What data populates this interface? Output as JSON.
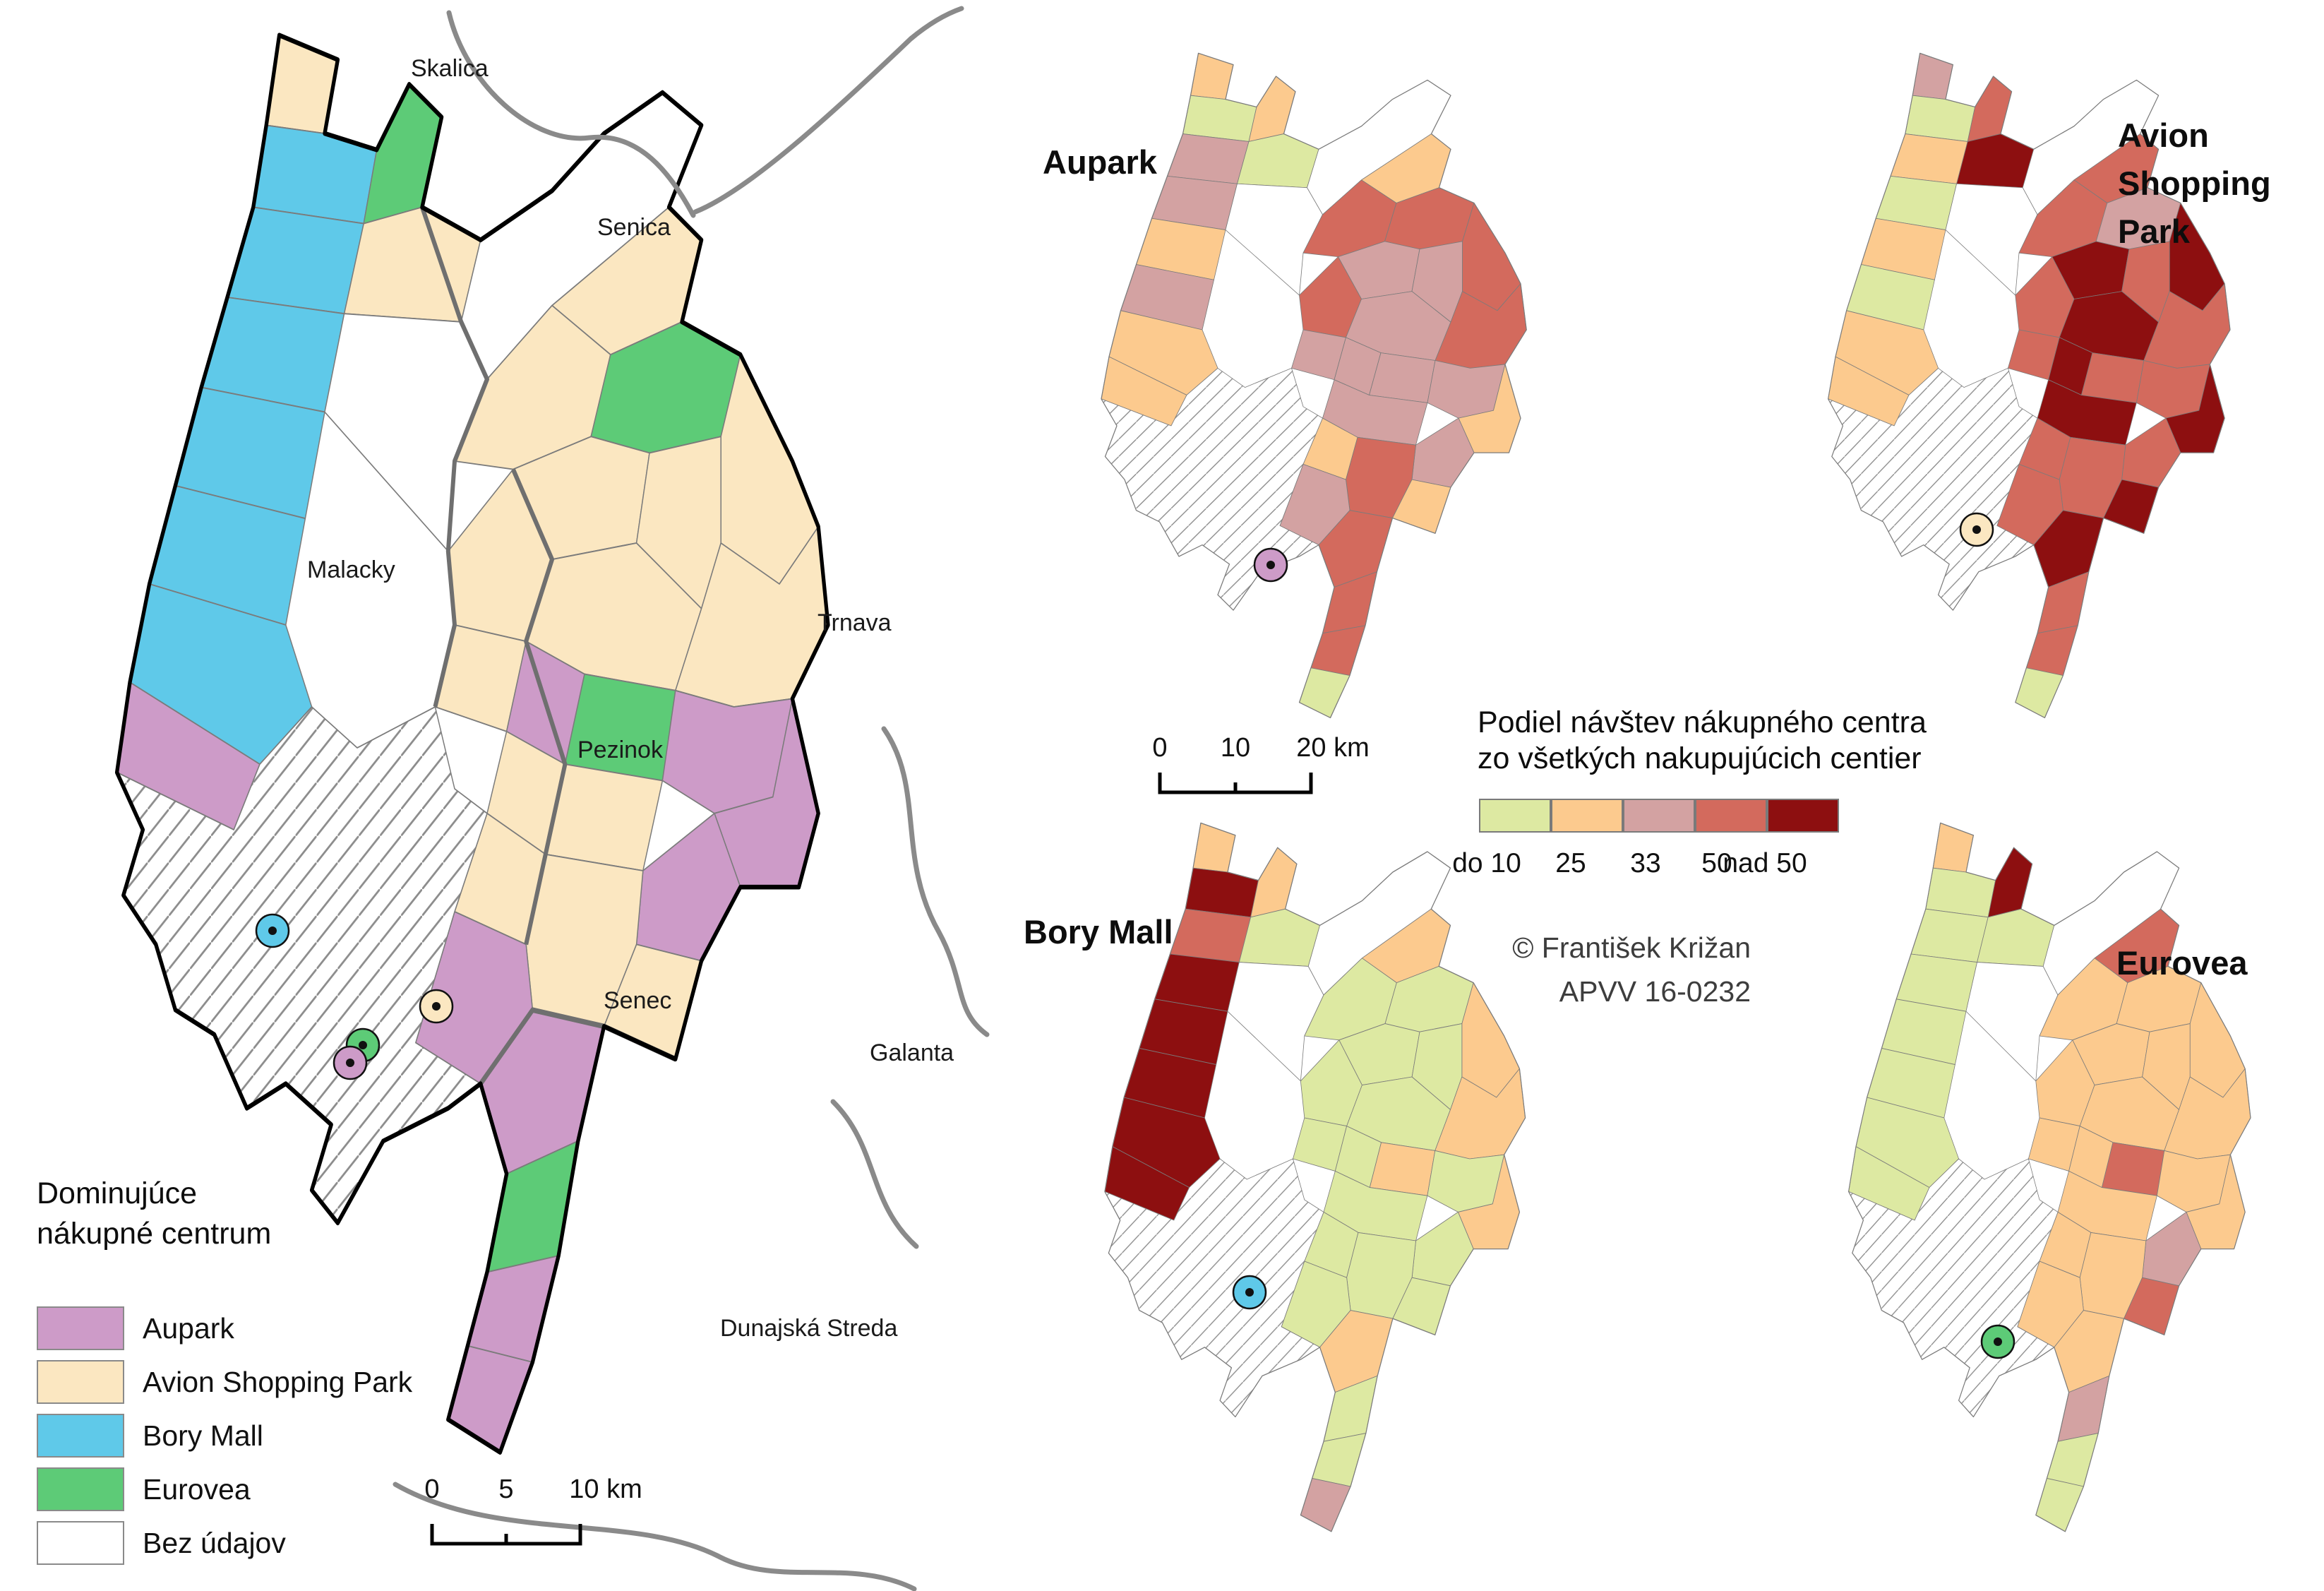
{
  "palette": {
    "c1": "#dde9a2",
    "c2": "#fcca8e",
    "c3": "#d3a2a2",
    "c4": "#d36a5d",
    "c5": "#8d0f10",
    "aupark": "#cd9bc8",
    "avion": "#fbe7c1",
    "bory": "#5fc9e9",
    "eurovea": "#5dcb77",
    "nodata": "#ffffff",
    "hatch_line": "#8c8c8c",
    "border": "#7b7b7b",
    "outline": "#000000"
  },
  "main_map": {
    "legend": {
      "title_line1": "Dominujúce",
      "title_line2": "nákupné centrum",
      "items": [
        {
          "label": "Aupark",
          "color_key": "aupark"
        },
        {
          "label": "Avion Shopping Park",
          "color_key": "avion"
        },
        {
          "label": "Bory Mall",
          "color_key": "bory"
        },
        {
          "label": "Eurovea",
          "color_key": "eurovea"
        },
        {
          "label": "Bez údajov",
          "color_key": "nodata"
        }
      ]
    },
    "scalebar": {
      "start": "0",
      "mid": "5",
      "end": "10 km"
    },
    "city_labels": [
      "Skalica",
      "Senica",
      "Malacky",
      "Trnava",
      "Pezinok",
      "Senec",
      "Galanta",
      "Dunajská Streda"
    ],
    "markers": [
      {
        "name": "bory-mall-location",
        "color_key": "bory"
      },
      {
        "name": "avion-location",
        "color_key": "avion"
      },
      {
        "name": "eurovea-location",
        "color_key": "eurovea"
      },
      {
        "name": "aupark-location",
        "color_key": "aupark"
      }
    ],
    "cells": {
      "Z1": "A",
      "Z2": "B",
      "Z3": "B",
      "Z4": "B",
      "Z5": "B",
      "Z6": "B",
      "Z7": "B",
      "Z8": "P",
      "N1": "E",
      "N2": "A",
      "W1": "W",
      "W2": "W",
      "C1": "A",
      "C2": "A",
      "C3": "E",
      "C4": "A",
      "C5": "A",
      "C6": "A",
      "C7": "A",
      "C8": "A",
      "C9": "A",
      "C10": "A",
      "C11": "P",
      "C12": "E",
      "C13": "P",
      "C14": "P",
      "C15": "A",
      "C16": "P",
      "C17": "A",
      "C18": "A",
      "C19": "A",
      "C20": "P",
      "C21": "P",
      "C22": "E",
      "C23": "P",
      "C24": "P",
      "H": "H"
    }
  },
  "share_legend": {
    "title_line1": "Podiel návštev nákupného centra",
    "title_line2": "zo všetkých nakupujúcich centier",
    "classes": [
      {
        "label": "do 10",
        "color_key": "c1"
      },
      {
        "label": "25",
        "color_key": "c2"
      },
      {
        "label": "33",
        "color_key": "c3"
      },
      {
        "label": "50",
        "color_key": "c4"
      },
      {
        "label": "nad 50",
        "color_key": "c5"
      }
    ]
  },
  "credit": {
    "line1": "© František Križan",
    "line2": "APVV 16-0232"
  },
  "small_scalebar": {
    "start": "0",
    "mid": "10",
    "end": "20 km"
  },
  "small_maps": [
    {
      "id": "aupark",
      "title": "Aupark",
      "marker_color_key": "aupark",
      "cells": {
        "Z1": "2",
        "Z2": "1",
        "Z3": "3",
        "Z4": "3",
        "Z5": "2",
        "Z6": "3",
        "Z7": "2",
        "Z8": "2",
        "N1": "2",
        "N2": "1",
        "W1": "W",
        "W2": "W",
        "C1": "2",
        "C2": "4",
        "C3": "4",
        "C4": "4",
        "C5": "3",
        "C6": "3",
        "C7": "4",
        "C8": "3",
        "C9": "4",
        "C10": "3",
        "C11": "3",
        "C12": "3",
        "C13": "3",
        "C14": "2",
        "C15": "3",
        "C16": "3",
        "C17": "2",
        "C18": "4",
        "C19": "2",
        "C20": "3",
        "C21": "4",
        "C22": "4",
        "C23": "4",
        "C24": "1",
        "H": "H"
      }
    },
    {
      "id": "avion",
      "title": "Avion Shopping Park",
      "title_lines": [
        "Avion",
        "Shopping",
        "Park"
      ],
      "marker_color_key": "avion",
      "cells": {
        "Z1": "3",
        "Z2": "1",
        "Z3": "2",
        "Z4": "1",
        "Z5": "2",
        "Z6": "1",
        "Z7": "2",
        "Z8": "2",
        "N1": "4",
        "N2": "5",
        "W1": "W",
        "W2": "W",
        "C1": "4",
        "C2": "4",
        "C3": "3",
        "C4": "5",
        "C5": "5",
        "C6": "4",
        "C7": "4",
        "C8": "5",
        "C9": "4",
        "C10": "4",
        "C11": "5",
        "C12": "4",
        "C13": "4",
        "C14": "5",
        "C15": "5",
        "C16": "4",
        "C17": "4",
        "C18": "4",
        "C19": "5",
        "C20": "4",
        "C21": "5",
        "C22": "4",
        "C23": "4",
        "C24": "1",
        "H": "H"
      }
    },
    {
      "id": "bory",
      "title": "Bory Mall",
      "marker_color_key": "bory",
      "cells": {
        "Z1": "2",
        "Z2": "5",
        "Z3": "4",
        "Z4": "5",
        "Z5": "5",
        "Z6": "5",
        "Z7": "5",
        "Z8": "5",
        "N1": "2",
        "N2": "1",
        "W1": "W",
        "W2": "W",
        "C1": "2",
        "C2": "1",
        "C3": "1",
        "C4": "2",
        "C5": "1",
        "C6": "1",
        "C7": "1",
        "C8": "1",
        "C9": "2",
        "C10": "1",
        "C11": "1",
        "C12": "2",
        "C13": "1",
        "C14": "2",
        "C15": "1",
        "C16": "1",
        "C17": "1",
        "C18": "1",
        "C19": "1",
        "C20": "1",
        "C21": "2",
        "C22": "1",
        "C23": "1",
        "C24": "3",
        "H": "H"
      }
    },
    {
      "id": "eurovea",
      "title": "Eurovea",
      "marker_color_key": "eurovea",
      "cells": {
        "Z1": "2",
        "Z2": "1",
        "Z3": "1",
        "Z4": "1",
        "Z5": "1",
        "Z6": "1",
        "Z7": "1",
        "Z8": "1",
        "N1": "5",
        "N2": "1",
        "W1": "W",
        "W2": "W",
        "C1": "4",
        "C2": "2",
        "C3": "2",
        "C4": "2",
        "C5": "2",
        "C6": "2",
        "C7": "2",
        "C8": "2",
        "C9": "2",
        "C10": "2",
        "C11": "2",
        "C12": "4",
        "C13": "2",
        "C14": "2",
        "C15": "2",
        "C16": "3",
        "C17": "2",
        "C18": "2",
        "C19": "4",
        "C20": "2",
        "C21": "2",
        "C22": "3",
        "C23": "1",
        "C24": "1",
        "H": "H"
      }
    }
  ]
}
